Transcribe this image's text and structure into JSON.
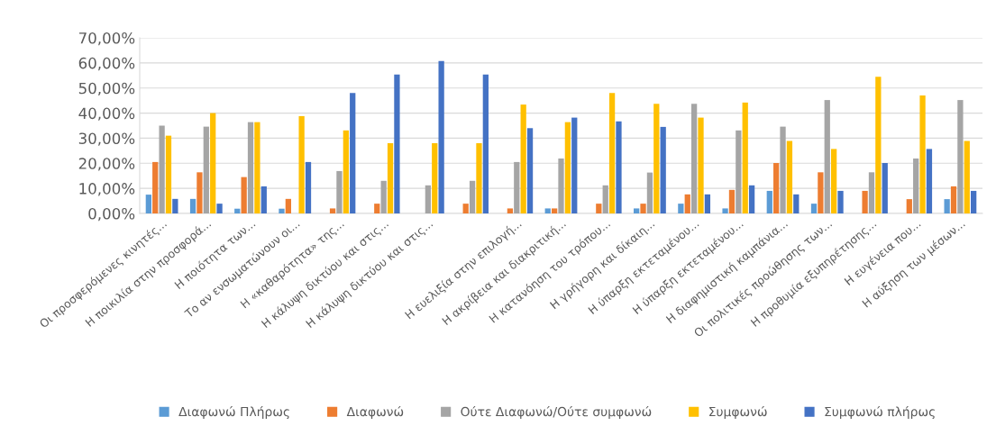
{
  "chart_data": {
    "type": "bar",
    "categories": [
      "Οι προσφερόμενες κινητές...",
      "Η ποικιλία στην προσφορά...",
      "Η ποιότητα των...",
      "Το αν ενσωματώνουν οι...",
      "Η «καθαρότητα» της...",
      "Η κάλυψη δικτύου και στις...",
      "Η κάλυψη δικτύου και στις...",
      null,
      "Η ευελιξία στην επιλογή...",
      "Η ακρίβεια και διακριτική...",
      "Η κατανόηση του τρόπου...",
      "Η γρήγορη και δίκαιη...",
      "Η ύπαρξη εκτεταμένου...",
      "Η ύπαρξη εκτεταμένου...",
      "Η διαφημιστική καμπάνια...",
      "Οι πολιτικές προώθησης των...",
      "Η προθυμία εξυπηρέτησης...",
      "Η ευγένεια που...",
      "Η αύξηση των μέσων..."
    ],
    "series": [
      {
        "name": "Διαφωνώ Πλήρως",
        "color": "#5b9bd5",
        "values": [
          7.5,
          5.8,
          1.9,
          1.9,
          0,
          0,
          0,
          0,
          0,
          2,
          0,
          2,
          3.9,
          2,
          9,
          3.9,
          0,
          0,
          5.7
        ]
      },
      {
        "name": "Διαφωνώ",
        "color": "#ed7d31",
        "values": [
          20.5,
          16.4,
          14.5,
          5.8,
          2,
          3.9,
          0,
          3.9,
          2,
          2,
          3.9,
          3.9,
          7.6,
          9.4,
          20.1,
          16.4,
          9,
          5.7,
          10.8
        ]
      },
      {
        "name": "Ούτε Διαφωνώ/Ούτε συμφωνώ",
        "color": "#a5a5a5",
        "values": [
          35,
          34.6,
          36.4,
          0,
          16.9,
          13,
          11.2,
          13,
          20.5,
          21.9,
          11.2,
          16.3,
          43.7,
          33.1,
          34.6,
          45.2,
          16.4,
          21.9,
          45.2
        ]
      },
      {
        "name": "Συμφωνώ",
        "color": "#ffc000",
        "values": [
          31,
          40,
          36.4,
          38.8,
          33.1,
          28,
          28,
          28,
          43.4,
          36.4,
          48,
          43.7,
          38.2,
          44.2,
          28.9,
          25.7,
          54.5,
          47,
          28.9
        ]
      },
      {
        "name": "Συμφωνώ πλήρως",
        "color": "#4472c4",
        "values": [
          5.8,
          3.9,
          10.8,
          20.5,
          48,
          55.4,
          60.8,
          55.4,
          34,
          38.2,
          36.7,
          34.5,
          7.6,
          11.2,
          7.6,
          9,
          20.1,
          25.7,
          9
        ]
      }
    ],
    "ylim": [
      0,
      70
    ],
    "yticks": [
      {
        "value": 0,
        "label": "0,00%"
      },
      {
        "value": 10,
        "label": "10,00%"
      },
      {
        "value": 20,
        "label": "20,00%"
      },
      {
        "value": 30,
        "label": "30,00%"
      },
      {
        "value": 40,
        "label": "40,00%"
      },
      {
        "value": 50,
        "label": "50,00%"
      },
      {
        "value": 60,
        "label": "60,00%"
      },
      {
        "value": 70,
        "label": "70,00%"
      }
    ],
    "grid": "y",
    "legend": "bottom"
  }
}
